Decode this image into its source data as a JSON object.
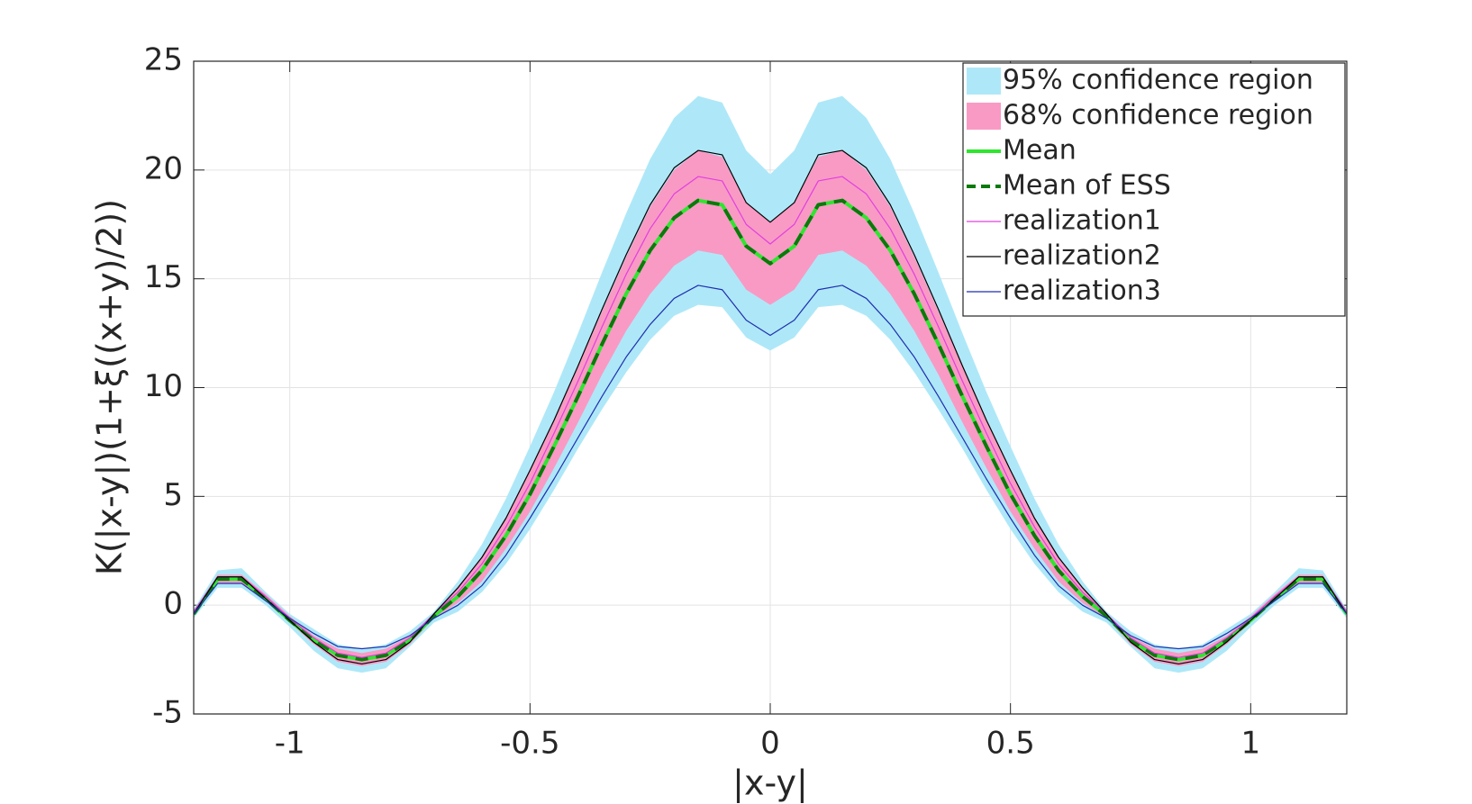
{
  "chart_data": {
    "type": "line",
    "xlabel": "|x-y|",
    "ylabel": "K(|x-y|)(1+ξ((x+y)/2))",
    "xlim": [
      -1.2,
      1.2
    ],
    "ylim": [
      -5,
      25
    ],
    "xticks": [
      -1,
      -0.5,
      0,
      0.5,
      1
    ],
    "yticks": [
      -5,
      0,
      5,
      10,
      15,
      20,
      25
    ],
    "grid": true,
    "legend": "upper right",
    "x": [
      -1.2,
      -1.15,
      -1.1,
      -1.05,
      -1.0,
      -0.95,
      -0.9,
      -0.85,
      -0.8,
      -0.75,
      -0.7,
      -0.65,
      -0.6,
      -0.55,
      -0.5,
      -0.45,
      -0.4,
      -0.35,
      -0.3,
      -0.25,
      -0.2,
      -0.15,
      -0.1,
      -0.05,
      0,
      0.05,
      0.1,
      0.15,
      0.2,
      0.25,
      0.3,
      0.35,
      0.4,
      0.45,
      0.5,
      0.55,
      0.6,
      0.65,
      0.7,
      0.75,
      0.8,
      0.85,
      0.9,
      0.95,
      1.0,
      1.05,
      1.1,
      1.15,
      1.2
    ],
    "bands": [
      {
        "name": "95% confidence region",
        "color": "#aee8f8",
        "upper": [
          -0.2,
          1.6,
          1.7,
          0.6,
          -0.4,
          -1.1,
          -1.8,
          -2.0,
          -1.8,
          -1.2,
          -0.3,
          1.1,
          2.8,
          4.9,
          7.3,
          9.8,
          12.5,
          15.3,
          18.0,
          20.5,
          22.4,
          23.4,
          23.1,
          20.9,
          19.8,
          20.9,
          23.1,
          23.4,
          22.4,
          20.5,
          18.0,
          15.3,
          12.5,
          9.8,
          7.3,
          4.9,
          2.8,
          1.1,
          -0.3,
          -1.2,
          -1.8,
          -2.0,
          -1.8,
          -1.1,
          -0.4,
          0.6,
          1.7,
          1.6,
          -0.2
        ],
        "lower": [
          -0.6,
          0.8,
          0.8,
          0.0,
          -1.0,
          -2.1,
          -2.9,
          -3.1,
          -2.9,
          -1.9,
          -0.8,
          -0.3,
          0.6,
          1.9,
          3.5,
          5.3,
          7.2,
          9.0,
          10.7,
          12.2,
          13.3,
          13.8,
          13.7,
          12.3,
          11.7,
          12.3,
          13.7,
          13.8,
          13.3,
          12.2,
          10.7,
          9.0,
          7.2,
          5.3,
          3.5,
          1.9,
          0.6,
          -0.3,
          -0.8,
          -1.9,
          -2.9,
          -3.1,
          -2.9,
          -2.1,
          -1.0,
          0.0,
          0.8,
          0.8,
          -0.6
        ]
      },
      {
        "name": "68% confidence region",
        "color": "#f99ac4",
        "upper": [
          -0.3,
          1.4,
          1.4,
          0.5,
          -0.5,
          -1.4,
          -2.0,
          -2.2,
          -2.0,
          -1.4,
          -0.4,
          0.8,
          2.2,
          4.0,
          6.2,
          8.5,
          11.0,
          13.5,
          16.0,
          18.3,
          20.0,
          20.9,
          20.6,
          18.5,
          17.6,
          18.5,
          20.6,
          20.9,
          20.0,
          18.3,
          16.0,
          13.5,
          11.0,
          8.5,
          6.2,
          4.0,
          2.2,
          0.8,
          -0.4,
          -1.4,
          -2.0,
          -2.2,
          -2.0,
          -1.4,
          -0.5,
          0.5,
          1.4,
          1.4,
          -0.3
        ],
        "lower": [
          -0.5,
          1.0,
          1.0,
          0.2,
          -0.8,
          -1.8,
          -2.6,
          -2.8,
          -2.6,
          -1.8,
          -0.6,
          0.1,
          1.1,
          2.6,
          4.3,
          6.3,
          8.4,
          10.6,
          12.6,
          14.3,
          15.6,
          16.3,
          16.1,
          14.5,
          13.8,
          14.5,
          16.1,
          16.3,
          15.6,
          14.3,
          12.6,
          10.6,
          8.4,
          6.3,
          4.3,
          2.6,
          1.1,
          0.1,
          -0.6,
          -1.8,
          -2.6,
          -2.8,
          -2.6,
          -1.8,
          -0.8,
          0.2,
          1.0,
          1.0,
          -0.5
        ]
      }
    ],
    "series": [
      {
        "name": "Mean",
        "color": "#2ee62e",
        "width": 4,
        "dashed": false,
        "values": [
          -0.4,
          1.2,
          1.2,
          0.3,
          -0.7,
          -1.6,
          -2.3,
          -2.5,
          -2.3,
          -1.6,
          -0.5,
          0.4,
          1.6,
          3.2,
          5.1,
          7.3,
          9.6,
          12.0,
          14.3,
          16.3,
          17.8,
          18.6,
          18.4,
          16.5,
          15.7,
          16.5,
          18.4,
          18.6,
          17.8,
          16.3,
          14.3,
          12.0,
          9.6,
          7.3,
          5.1,
          3.2,
          1.6,
          0.4,
          -0.5,
          -1.6,
          -2.3,
          -2.5,
          -2.3,
          -1.6,
          -0.7,
          0.3,
          1.2,
          1.2,
          -0.4
        ]
      },
      {
        "name": "Mean of ESS",
        "color": "#0a7a0a",
        "width": 4,
        "dashed": true,
        "values": [
          -0.4,
          1.2,
          1.2,
          0.3,
          -0.7,
          -1.6,
          -2.3,
          -2.5,
          -2.3,
          -1.6,
          -0.5,
          0.4,
          1.6,
          3.2,
          5.1,
          7.3,
          9.6,
          12.0,
          14.3,
          16.3,
          17.8,
          18.6,
          18.4,
          16.5,
          15.7,
          16.5,
          18.4,
          18.6,
          17.8,
          16.3,
          14.3,
          12.0,
          9.6,
          7.3,
          5.1,
          3.2,
          1.6,
          0.4,
          -0.5,
          -1.6,
          -2.3,
          -2.5,
          -2.3,
          -1.6,
          -0.7,
          0.3,
          1.2,
          1.2,
          -0.4
        ]
      },
      {
        "name": "realization1",
        "color": "#e040e0",
        "width": 1.2,
        "dashed": false,
        "values": [
          -0.3,
          1.3,
          1.3,
          0.4,
          -0.6,
          -1.5,
          -2.2,
          -2.4,
          -2.2,
          -1.5,
          -0.4,
          0.6,
          1.9,
          3.6,
          5.6,
          7.9,
          10.3,
          12.8,
          15.2,
          17.3,
          18.9,
          19.7,
          19.5,
          17.5,
          16.6,
          17.5,
          19.5,
          19.7,
          18.9,
          17.3,
          15.2,
          12.8,
          10.3,
          7.9,
          5.6,
          3.6,
          1.9,
          0.6,
          -0.4,
          -1.5,
          -2.2,
          -2.4,
          -2.2,
          -1.5,
          -0.6,
          0.4,
          1.3,
          1.3,
          -0.3
        ]
      },
      {
        "name": "realization2",
        "color": "#000000",
        "width": 1.2,
        "dashed": false,
        "values": [
          -0.4,
          1.3,
          1.3,
          0.3,
          -0.7,
          -1.7,
          -2.5,
          -2.7,
          -2.5,
          -1.7,
          -0.4,
          0.8,
          2.2,
          4.0,
          6.2,
          8.5,
          11.0,
          13.6,
          16.1,
          18.4,
          20.1,
          20.9,
          20.7,
          18.5,
          17.6,
          18.5,
          20.7,
          20.9,
          20.1,
          18.4,
          16.1,
          13.6,
          11.0,
          8.5,
          6.2,
          4.0,
          2.2,
          0.8,
          -0.4,
          -1.7,
          -2.5,
          -2.7,
          -2.5,
          -1.7,
          -0.7,
          0.3,
          1.3,
          1.3,
          -0.4
        ]
      },
      {
        "name": "realization3",
        "color": "#1f2fb0",
        "width": 1.2,
        "dashed": false,
        "values": [
          -0.4,
          1.0,
          1.0,
          0.2,
          -0.6,
          -1.3,
          -1.9,
          -2.0,
          -1.9,
          -1.4,
          -0.6,
          0.0,
          0.9,
          2.3,
          4.0,
          5.8,
          7.7,
          9.6,
          11.4,
          12.9,
          14.1,
          14.7,
          14.5,
          13.1,
          12.4,
          13.1,
          14.5,
          14.7,
          14.1,
          12.9,
          11.4,
          9.6,
          7.7,
          5.8,
          4.0,
          2.3,
          0.9,
          0.0,
          -0.6,
          -1.4,
          -1.9,
          -2.0,
          -1.9,
          -1.3,
          -0.6,
          0.2,
          1.0,
          1.0,
          -0.4
        ]
      }
    ]
  }
}
